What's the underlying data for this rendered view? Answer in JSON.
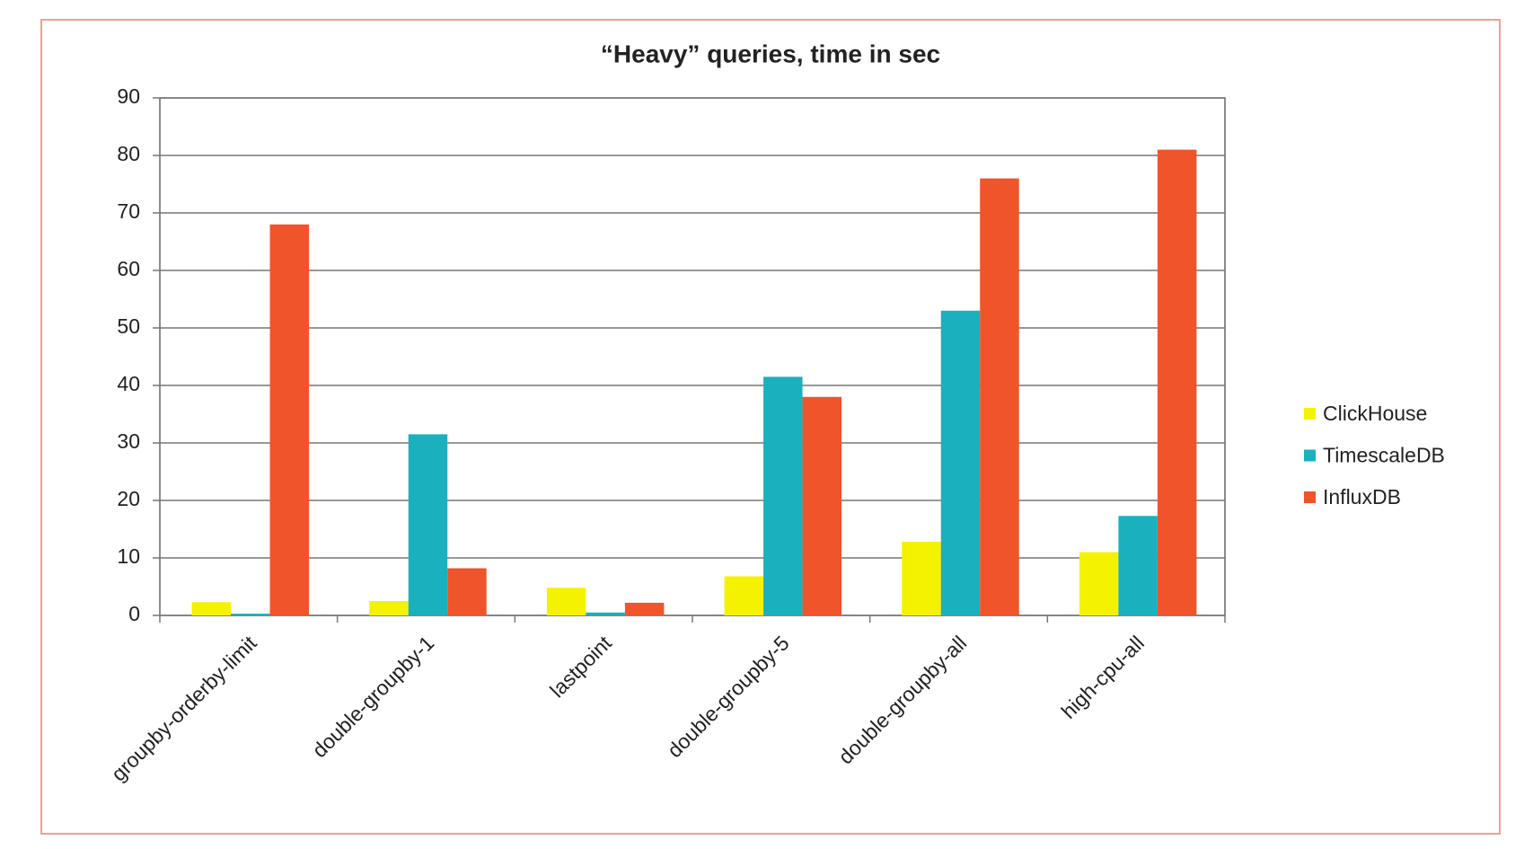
{
  "chart_data": {
    "type": "bar",
    "title": "“Heavy” queries, time in sec",
    "categories": [
      "groupby-orderby-limit",
      "double-groupby-1",
      "lastpoint",
      "double-groupby-5",
      "double-groupby-all",
      "high-cpu-all"
    ],
    "series": [
      {
        "name": "ClickHouse",
        "color": "#f5f200",
        "values": [
          2.3,
          2.5,
          4.8,
          6.8,
          12.8,
          11
        ]
      },
      {
        "name": "TimescaleDB",
        "color": "#1bb0bd",
        "values": [
          0.3,
          31.5,
          0.5,
          41.5,
          53,
          17.3
        ]
      },
      {
        "name": "InfluxDB",
        "color": "#f0542a",
        "values": [
          68,
          8.2,
          2.2,
          38,
          76,
          81
        ]
      }
    ],
    "ylim": [
      0,
      90
    ],
    "yticks": [
      0,
      10,
      20,
      30,
      40,
      50,
      60,
      70,
      80,
      90
    ],
    "grid": true,
    "legend": "right"
  }
}
